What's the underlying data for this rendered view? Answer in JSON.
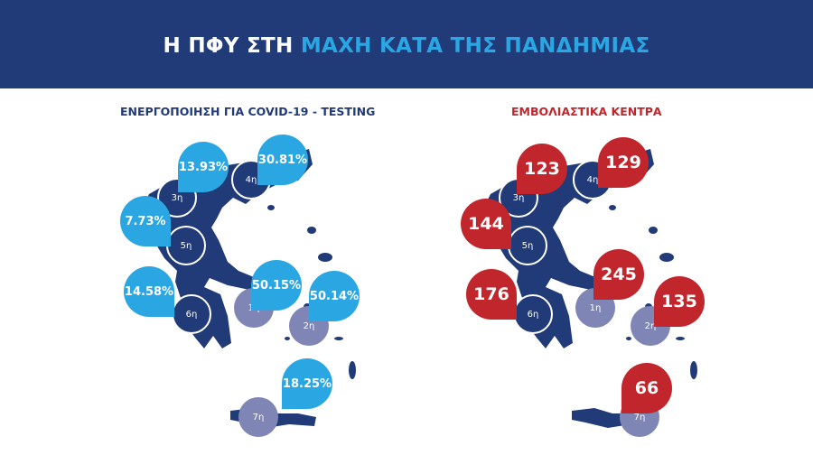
{
  "header": {
    "title_white": "Η ΠΦΥ ΣΤΗ",
    "title_accent": "ΜΑΧΗ ΚΑΤΑ ΤΗΣ ΠΑΝΔΗΜΙΑΣ"
  },
  "colors": {
    "navy": "#213a78",
    "blue": "#2aa7e3",
    "red": "#c1262d",
    "region_light": "#7f86b6"
  },
  "left": {
    "title": "ΕΝΕΡΓΟΠΟΙΗΣΗ ΓΙΑ COVID-19 - TESTING",
    "values": {
      "r3": "13.93%",
      "r4": "30.81%",
      "r5": "7.73%",
      "r6": "14.58%",
      "r1": "50.15%",
      "r2": "50.14%",
      "r7": "18.25%"
    }
  },
  "right": {
    "title": "ΕΜΒΟΛΙΑΣΤΙΚΑ ΚΕΝΤΡΑ",
    "values": {
      "r3": "123",
      "r4": "129",
      "r5": "144",
      "r6": "176",
      "r1": "245",
      "r2": "135",
      "r7": "66"
    }
  },
  "regions": {
    "r1": "1η",
    "r2": "2η",
    "r3": "3η",
    "r4": "4η",
    "r5": "5η",
    "r6": "6η",
    "r7": "7η"
  }
}
